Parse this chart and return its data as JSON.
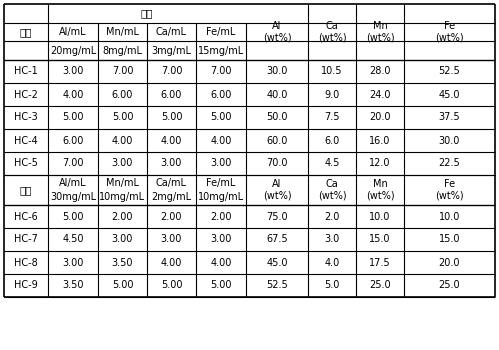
{
  "col_headers_g1": {
    "sub1": [
      "Al/mL",
      "Mn/mL",
      "Ca/mL",
      "Fe/mL"
    ],
    "sub2": [
      "20mg/mL",
      "8mg/mL",
      "3mg/mL",
      "15mg/mL"
    ]
  },
  "col_headers_g2": {
    "sub1": [
      "Al/mL",
      "Mn/mL",
      "Ca/mL",
      "Fe/mL"
    ],
    "sub2": [
      "30mg/mL",
      "10mg/mL",
      "2mg/mL",
      "10mg/mL"
    ]
  },
  "right_col_headers": [
    "Al\n(wt%)",
    "Ca\n(wt%)",
    "Mn\n(wt%)",
    "Fe\n(wt%)"
  ],
  "rows_group1": [
    [
      "HC-1",
      "3.00",
      "7.00",
      "7.00",
      "7.00",
      "30.0",
      "10.5",
      "28.0",
      "52.5"
    ],
    [
      "HC-2",
      "4.00",
      "6.00",
      "6.00",
      "6.00",
      "40.0",
      "9.0",
      "24.0",
      "45.0"
    ],
    [
      "HC-3",
      "5.00",
      "5.00",
      "5.00",
      "5.00",
      "50.0",
      "7.5",
      "20.0",
      "37.5"
    ],
    [
      "HC-4",
      "6.00",
      "4.00",
      "4.00",
      "4.00",
      "60.0",
      "6.0",
      "16.0",
      "30.0"
    ],
    [
      "HC-5",
      "7.00",
      "3.00",
      "3.00",
      "3.00",
      "70.0",
      "4.5",
      "12.0",
      "22.5"
    ]
  ],
  "rows_group2": [
    [
      "HC-6",
      "5.00",
      "2.00",
      "2.00",
      "2.00",
      "75.0",
      "2.0",
      "10.0",
      "10.0"
    ],
    [
      "HC-7",
      "4.50",
      "3.00",
      "3.00",
      "3.00",
      "67.5",
      "3.0",
      "15.0",
      "15.0"
    ],
    [
      "HC-8",
      "3.00",
      "3.50",
      "4.00",
      "4.00",
      "45.0",
      "4.0",
      "17.5",
      "20.0"
    ],
    [
      "HC-9",
      "3.50",
      "5.00",
      "5.00",
      "5.00",
      "52.5",
      "5.0",
      "25.0",
      "25.0"
    ]
  ],
  "bg_color": "#ffffff",
  "line_color": "#000000",
  "text_color": "#000000",
  "peipbi_title": "配比",
  "bianhao": "编号",
  "font_size": 7.0,
  "fig_width": 4.99,
  "fig_height": 3.5,
  "dpi": 100
}
